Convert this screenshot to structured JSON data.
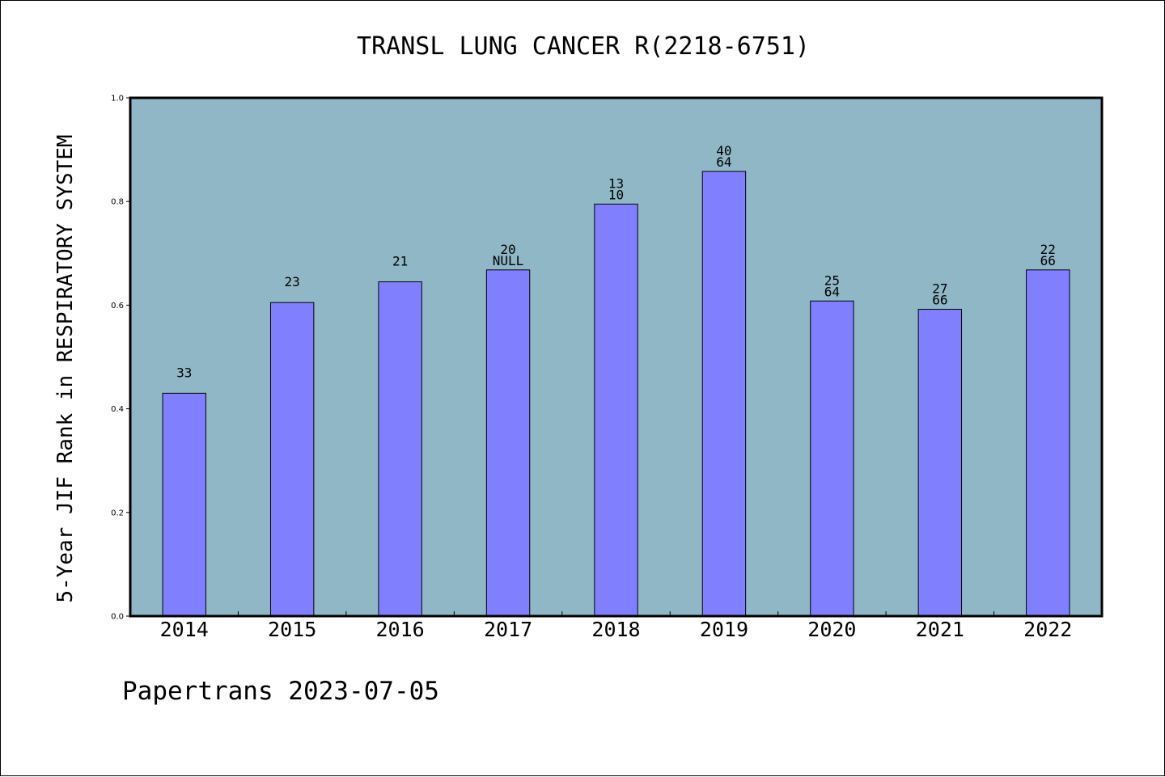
{
  "colors": {
    "background": "#ffffff",
    "plot_background": "#8fb7c6",
    "bar_fill": "#8080ff",
    "bar_stroke": "#000000"
  },
  "footer": "Papertrans 2023-07-05",
  "chart_data": {
    "type": "bar",
    "title": "TRANSL LUNG CANCER R(2218-6751)",
    "xlabel": "",
    "ylabel": "5-Year JIF Rank in RESPIRATORY SYSTEM",
    "ylim": [
      0,
      1.0
    ],
    "yticks": [
      "0.0",
      "0.2",
      "0.4",
      "0.6",
      "0.8",
      "1.0"
    ],
    "grid": false,
    "legend": "none",
    "categories": [
      "2014",
      "2015",
      "2016",
      "2017",
      "2018",
      "2019",
      "2020",
      "2021",
      "2022"
    ],
    "values": [
      0.43,
      0.605,
      0.645,
      0.668,
      0.795,
      0.858,
      0.608,
      0.592,
      0.668
    ],
    "labels": [
      [
        "33"
      ],
      [
        "23"
      ],
      [
        "21"
      ],
      [
        "20",
        "NULL"
      ],
      [
        "13",
        "10"
      ],
      [
        "40",
        "64"
      ],
      [
        "25",
        "64"
      ],
      [
        "27",
        "66"
      ],
      [
        "22",
        "66"
      ]
    ]
  }
}
